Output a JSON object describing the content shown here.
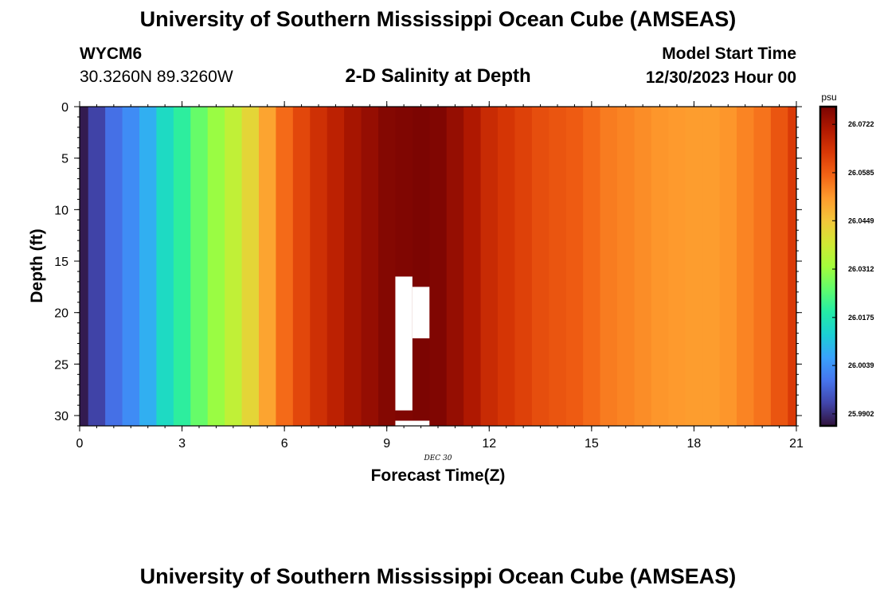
{
  "header": {
    "title": "University of Southern Mississippi Ocean Cube (AMSEAS)",
    "station_id": "WYCM6",
    "coords": "30.3260N  89.3260W",
    "plot_title": "2-D Salinity at Depth",
    "start_label": "Model Start Time",
    "start_value": "12/30/2023 Hour 00"
  },
  "footer": {
    "title": "University of Southern Mississippi Ocean Cube (AMSEAS)"
  },
  "colors": {
    "background": "#ffffff",
    "missing": "#ffffff",
    "palette": [
      "#30123b",
      "#4145ab",
      "#4675ed",
      "#39a2fc",
      "#1bcfd4",
      "#24eca6",
      "#61fc6c",
      "#a4fc3b",
      "#d1e834",
      "#f3c63a",
      "#fe9b2d",
      "#f36315",
      "#d93806",
      "#b11901",
      "#7a0402"
    ]
  },
  "chart_data": {
    "type": "heatmap",
    "title": "2-D Salinity at Depth",
    "xlabel": "Forecast Time(Z)",
    "ylabel": "Depth (ft)",
    "xlim": [
      0,
      21
    ],
    "ylim": [
      31,
      0
    ],
    "x_ticks": [
      0,
      3,
      6,
      9,
      12,
      15,
      18,
      21
    ],
    "y_ticks": [
      0,
      5,
      10,
      15,
      20,
      25,
      30
    ],
    "x_tick_labels": [
      "0",
      "3",
      "6",
      "9",
      "12",
      "15",
      "18",
      "21"
    ],
    "y_tick_labels": [
      "0",
      "5",
      "10",
      "15",
      "20",
      "25",
      "30"
    ],
    "date_label": "DEC  30",
    "colorbar": {
      "unit": "psu",
      "min": 25.9868,
      "max": 26.0772,
      "ticks": [
        25.9902,
        26.0039,
        26.0175,
        26.0312,
        26.0449,
        26.0585,
        26.0722
      ],
      "tick_labels": [
        "25.9902",
        "26.0039",
        "26.0175",
        "26.0312",
        "26.0449",
        "26.0585",
        "26.0722"
      ]
    },
    "time_step_hours": 0.5,
    "column_centers": [
      0,
      0.5,
      1,
      1.5,
      2,
      2.5,
      3,
      3.5,
      4,
      4.5,
      5,
      5.5,
      6,
      6.5,
      7,
      7.5,
      8,
      8.5,
      9,
      9.5,
      10,
      10.5,
      11,
      11.5,
      12,
      12.5,
      13,
      13.5,
      14,
      14.5,
      15,
      15.5,
      16,
      16.5,
      17,
      17.5,
      18,
      18.5,
      19,
      19.5,
      20,
      20.5,
      21
    ],
    "salinity_by_time": [
      25.988,
      25.993,
      25.999,
      26.003,
      26.008,
      26.015,
      26.02,
      26.026,
      26.031,
      26.036,
      26.042,
      26.05,
      26.057,
      26.062,
      26.066,
      26.069,
      26.072,
      26.074,
      26.076,
      26.0765,
      26.077,
      26.0765,
      26.074,
      26.071,
      26.067,
      26.065,
      26.063,
      26.061,
      26.06,
      26.059,
      26.057,
      26.055,
      26.054,
      26.053,
      26.052,
      26.0515,
      26.051,
      26.051,
      26.052,
      26.054,
      26.056,
      26.06,
      26.064
    ],
    "missing_regions": [
      {
        "t_start": 9.25,
        "t_end": 9.75,
        "depth_top": 16.5,
        "depth_bottom": 29.5
      },
      {
        "t_start": 9.75,
        "t_end": 10.25,
        "depth_top": 17.5,
        "depth_bottom": 22.5
      },
      {
        "t_start": 9.25,
        "t_end": 10.25,
        "depth_top": 30.5,
        "depth_bottom": 31
      }
    ]
  }
}
